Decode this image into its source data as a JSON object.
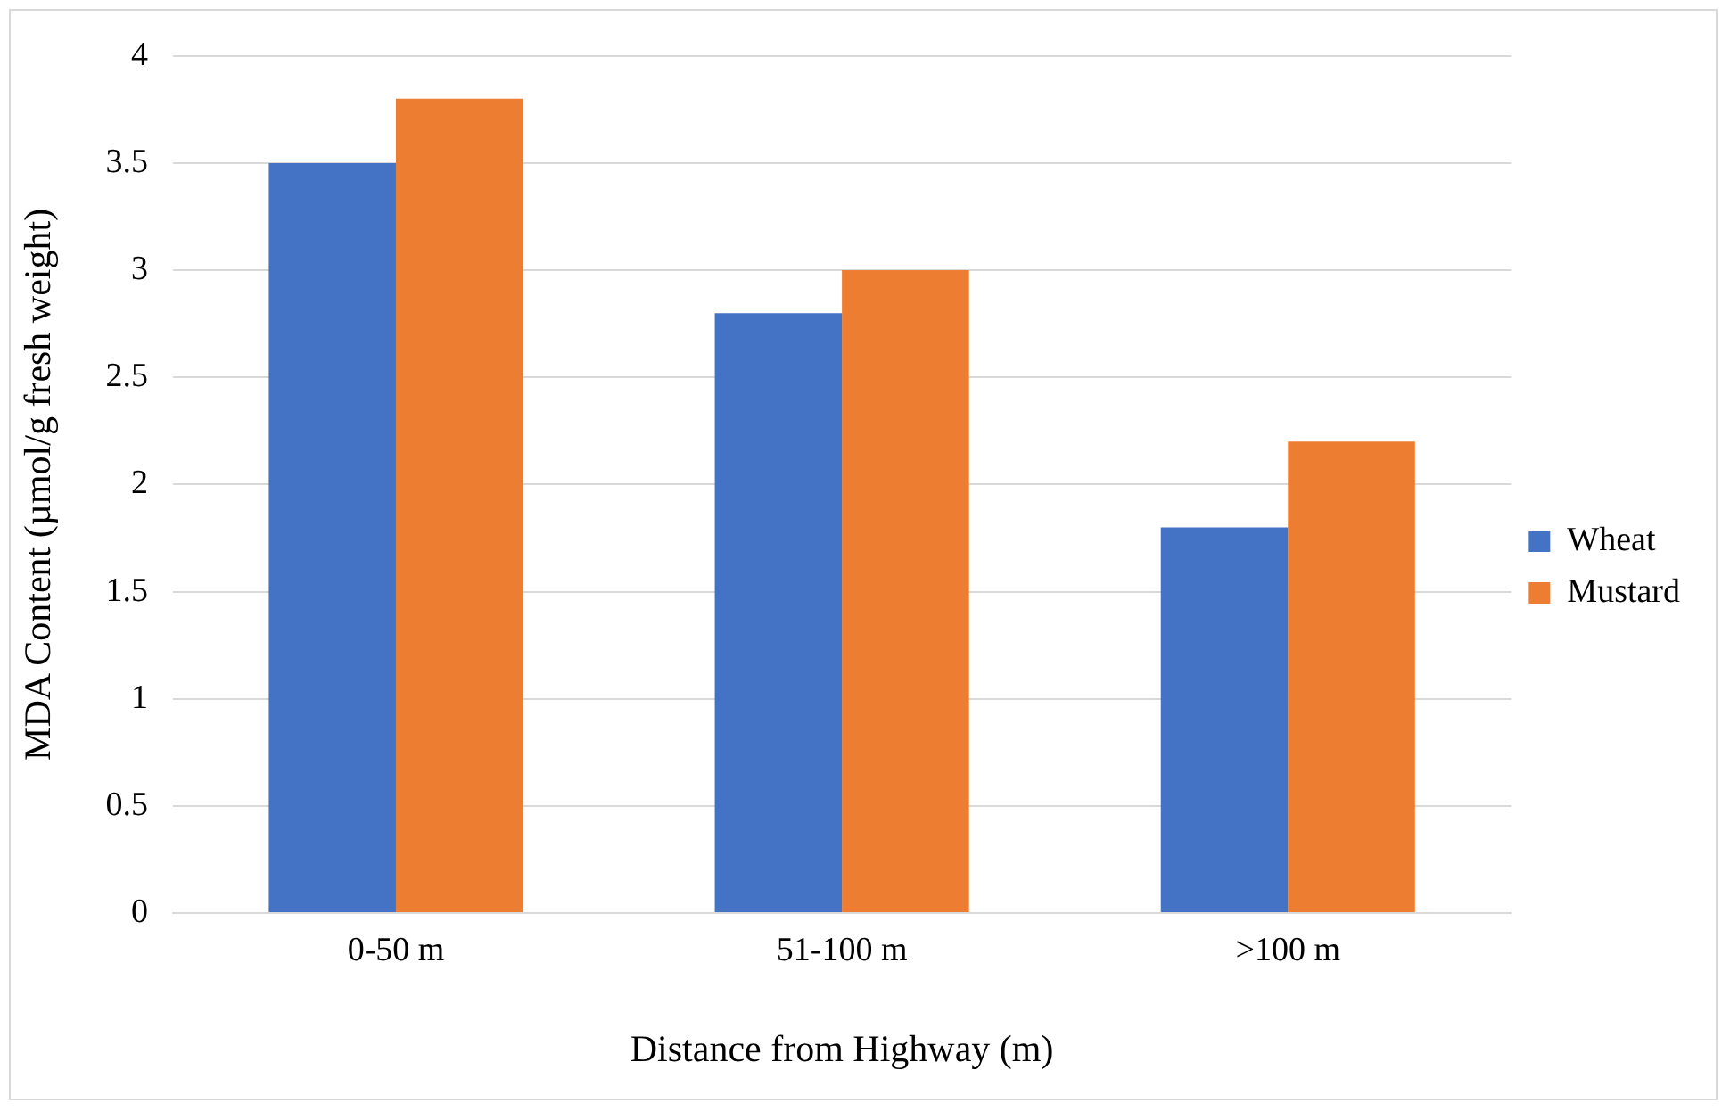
{
  "chart_data": {
    "type": "bar",
    "xlabel": "Distance from Highway (m)",
    "ylabel": "MDA Content (µmol/g fresh weight)",
    "categories": [
      "0-50 m",
      "51-100 m",
      ">100 m"
    ],
    "series": [
      {
        "name": "Wheat",
        "color": "#4472c4",
        "values": [
          3.5,
          2.8,
          1.8
        ]
      },
      {
        "name": "Mustard",
        "color": "#ed7d31",
        "values": [
          3.8,
          3.0,
          2.2
        ]
      }
    ],
    "ylim": [
      0,
      4
    ],
    "yticks": [
      0,
      0.5,
      1,
      1.5,
      2,
      2.5,
      3,
      3.5,
      4
    ],
    "grid": "y",
    "legend": "right"
  }
}
